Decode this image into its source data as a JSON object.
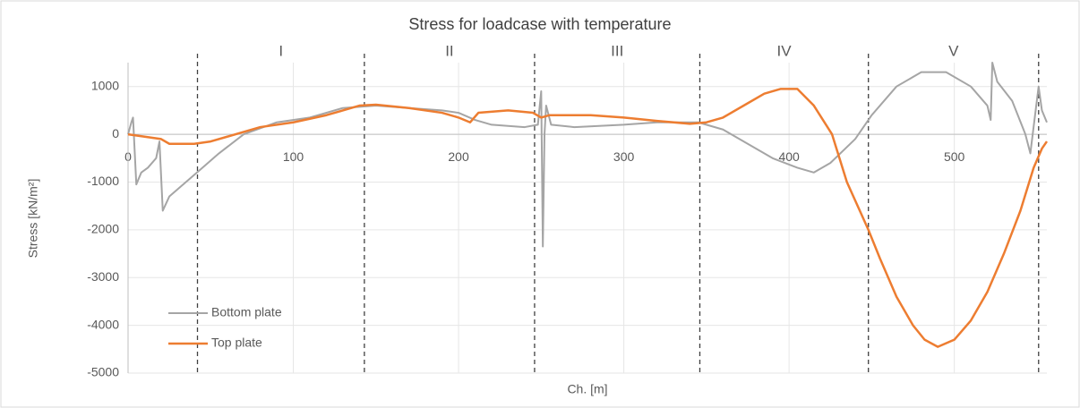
{
  "chart_data": {
    "type": "line",
    "title": "Stress for loadcase with temperature",
    "xlabel": "Ch. [m]",
    "ylabel": "Stress [kN/m²]",
    "xlim": [
      0,
      556
    ],
    "xticks": [
      0,
      100,
      200,
      300,
      400,
      500
    ],
    "ylim": [
      -5000,
      1500
    ],
    "yticks": [
      -5000,
      -4000,
      -3000,
      -2000,
      -1000,
      0,
      1000
    ],
    "grid": true,
    "legend": "lower left",
    "dividers": [
      42,
      143,
      246,
      346,
      448,
      551
    ],
    "section_labels": [
      "I",
      "II",
      "III",
      "IV",
      "V"
    ],
    "series": [
      {
        "name": "Bottom plate",
        "color": "#a5a5a5",
        "x": [
          0,
          2,
          3,
          5,
          8,
          12,
          17,
          19,
          21,
          25,
          35,
          45,
          55,
          70,
          90,
          110,
          130,
          150,
          170,
          190,
          200,
          210,
          220,
          240,
          248,
          250,
          251,
          252,
          253,
          256,
          270,
          300,
          320,
          345,
          360,
          375,
          390,
          405,
          415,
          425,
          440,
          450,
          465,
          480,
          495,
          510,
          520,
          522,
          523,
          526,
          535,
          543,
          546,
          551,
          553,
          556
        ],
        "values": [
          0,
          250,
          350,
          -1050,
          -800,
          -700,
          -500,
          -150,
          -1600,
          -1300,
          -1000,
          -700,
          -400,
          0,
          250,
          350,
          550,
          600,
          550,
          500,
          450,
          300,
          200,
          150,
          200,
          900,
          -2350,
          0,
          600,
          200,
          150,
          200,
          250,
          250,
          100,
          -200,
          -500,
          -700,
          -800,
          -600,
          -100,
          400,
          1000,
          1300,
          1300,
          1000,
          600,
          300,
          1500,
          1100,
          700,
          0,
          -400,
          1000,
          500,
          250
        ]
      },
      {
        "name": "Top plate",
        "color": "#ed7d31",
        "x": [
          0,
          10,
          20,
          25,
          40,
          50,
          60,
          80,
          100,
          120,
          140,
          150,
          170,
          190,
          200,
          207,
          212,
          230,
          245,
          250,
          255,
          280,
          300,
          320,
          340,
          350,
          360,
          375,
          385,
          395,
          405,
          415,
          426,
          435,
          448,
          455,
          465,
          475,
          482,
          490,
          500,
          510,
          520,
          530,
          540,
          548,
          553,
          556
        ],
        "values": [
          0,
          -50,
          -100,
          -200,
          -200,
          -150,
          -50,
          150,
          250,
          400,
          600,
          620,
          550,
          450,
          350,
          250,
          450,
          500,
          450,
          350,
          400,
          400,
          350,
          280,
          220,
          250,
          350,
          650,
          850,
          950,
          950,
          600,
          0,
          -1000,
          -2000,
          -2600,
          -3400,
          -4000,
          -4300,
          -4450,
          -4300,
          -3900,
          -3300,
          -2500,
          -1600,
          -700,
          -300,
          -150
        ]
      }
    ]
  }
}
